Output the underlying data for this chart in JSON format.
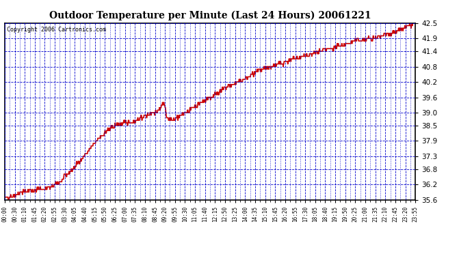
{
  "title": "Outdoor Temperature per Minute (Last 24 Hours) 20061221",
  "copyright": "Copyright 2006 Cartronics.com",
  "background_color": "#ffffff",
  "plot_bg_color": "#ffffff",
  "grid_color": "#0000cc",
  "line_color": "#cc0000",
  "line_width": 1.2,
  "ylim": [
    35.6,
    42.5
  ],
  "yticks": [
    35.6,
    36.2,
    36.8,
    37.3,
    37.9,
    38.5,
    39.0,
    39.6,
    40.2,
    40.8,
    41.4,
    41.9,
    42.5
  ],
  "xtick_labels": [
    "00:00",
    "00:30",
    "01:10",
    "01:45",
    "02:20",
    "02:55",
    "03:30",
    "04:05",
    "04:40",
    "05:15",
    "05:50",
    "06:25",
    "07:00",
    "07:35",
    "08:10",
    "08:45",
    "09:20",
    "09:55",
    "10:30",
    "11:05",
    "11:40",
    "12:15",
    "12:50",
    "13:25",
    "14:00",
    "14:35",
    "15:10",
    "15:45",
    "16:20",
    "16:55",
    "17:30",
    "18:05",
    "18:40",
    "19:15",
    "19:50",
    "20:25",
    "21:00",
    "21:35",
    "22:10",
    "22:45",
    "23:20",
    "23:55"
  ],
  "num_points": 1440,
  "seed": 42,
  "control_points": [
    [
      0.0,
      35.65
    ],
    [
      0.5,
      35.75
    ],
    [
      1.0,
      35.9
    ],
    [
      1.5,
      35.95
    ],
    [
      2.0,
      36.0
    ],
    [
      2.5,
      36.05
    ],
    [
      2.8,
      36.1
    ],
    [
      3.0,
      36.2
    ],
    [
      3.3,
      36.3
    ],
    [
      3.5,
      36.5
    ],
    [
      4.0,
      36.8
    ],
    [
      4.5,
      37.2
    ],
    [
      5.0,
      37.6
    ],
    [
      5.5,
      38.0
    ],
    [
      6.0,
      38.3
    ],
    [
      6.5,
      38.5
    ],
    [
      7.0,
      38.6
    ],
    [
      7.5,
      38.65
    ],
    [
      8.0,
      38.8
    ],
    [
      8.3,
      38.9
    ],
    [
      8.6,
      39.0
    ],
    [
      9.0,
      39.1
    ],
    [
      9.3,
      39.4
    ],
    [
      9.5,
      38.8
    ],
    [
      9.8,
      38.7
    ],
    [
      10.0,
      38.75
    ],
    [
      10.3,
      38.85
    ],
    [
      10.5,
      39.0
    ],
    [
      11.0,
      39.2
    ],
    [
      11.5,
      39.4
    ],
    [
      12.0,
      39.6
    ],
    [
      12.5,
      39.8
    ],
    [
      13.0,
      40.0
    ],
    [
      13.5,
      40.15
    ],
    [
      14.0,
      40.3
    ],
    [
      14.5,
      40.5
    ],
    [
      15.0,
      40.65
    ],
    [
      15.5,
      40.8
    ],
    [
      16.0,
      40.9
    ],
    [
      16.5,
      41.0
    ],
    [
      17.0,
      41.1
    ],
    [
      17.5,
      41.2
    ],
    [
      18.0,
      41.3
    ],
    [
      18.5,
      41.4
    ],
    [
      19.0,
      41.5
    ],
    [
      19.5,
      41.6
    ],
    [
      20.0,
      41.7
    ],
    [
      20.5,
      41.8
    ],
    [
      21.0,
      41.85
    ],
    [
      21.5,
      41.9
    ],
    [
      22.0,
      42.0
    ],
    [
      22.5,
      42.1
    ],
    [
      23.0,
      42.2
    ],
    [
      23.5,
      42.35
    ],
    [
      24.0,
      42.5
    ]
  ]
}
